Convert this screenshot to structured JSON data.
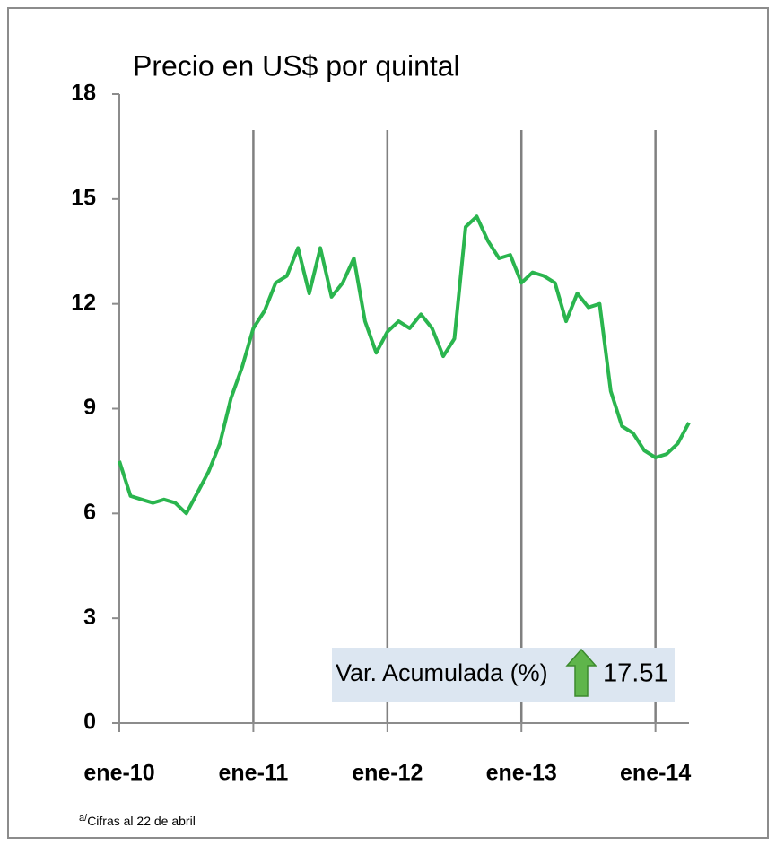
{
  "chart_data": {
    "type": "line",
    "title": "Precio en US$ por quintal",
    "x": [
      "2010-01",
      "2010-02",
      "2010-03",
      "2010-04",
      "2010-05",
      "2010-06",
      "2010-07",
      "2010-08",
      "2010-09",
      "2010-10",
      "2010-11",
      "2010-12",
      "2011-01",
      "2011-02",
      "2011-03",
      "2011-04",
      "2011-05",
      "2011-06",
      "2011-07",
      "2011-08",
      "2011-09",
      "2011-10",
      "2011-11",
      "2011-12",
      "2012-01",
      "2012-02",
      "2012-03",
      "2012-04",
      "2012-05",
      "2012-06",
      "2012-07",
      "2012-08",
      "2012-09",
      "2012-10",
      "2012-11",
      "2012-12",
      "2013-01",
      "2013-02",
      "2013-03",
      "2013-04",
      "2013-05",
      "2013-06",
      "2013-07",
      "2013-08",
      "2013-09",
      "2013-10",
      "2013-11",
      "2013-12",
      "2014-01",
      "2014-02",
      "2014-03",
      "2014-04"
    ],
    "values": [
      7.5,
      6.5,
      6.4,
      6.3,
      6.4,
      6.3,
      6.0,
      6.6,
      7.2,
      8.0,
      9.3,
      10.2,
      11.3,
      11.8,
      12.6,
      12.8,
      13.6,
      12.3,
      13.6,
      12.2,
      12.6,
      13.3,
      11.5,
      10.6,
      11.2,
      11.5,
      11.3,
      11.7,
      11.3,
      10.5,
      11.0,
      14.2,
      14.5,
      13.8,
      13.3,
      13.4,
      12.6,
      12.9,
      12.8,
      12.6,
      11.5,
      12.3,
      11.9,
      12.0,
      9.5,
      8.5,
      8.3,
      7.8,
      7.6,
      7.7,
      8.0,
      8.6
    ],
    "color": "#2ab54e",
    "xlim": [
      "2010-01",
      "2014-04"
    ],
    "xticks": [
      {
        "value": "2010-01",
        "label": "ene-10"
      },
      {
        "value": "2011-01",
        "label": "ene-11"
      },
      {
        "value": "2012-01",
        "label": "ene-12"
      },
      {
        "value": "2013-01",
        "label": "ene-13"
      },
      {
        "value": "2014-01",
        "label": "ene-14"
      }
    ],
    "ylim": [
      0,
      18
    ],
    "yticks": [
      0,
      3,
      6,
      9,
      12,
      15,
      18
    ],
    "grid": "x",
    "annotation": {
      "label": "Var. Acumulada (%)",
      "value": 17.51
    },
    "footnote": {
      "marker": "a/",
      "text": "Cifras al 22 de abril"
    }
  }
}
